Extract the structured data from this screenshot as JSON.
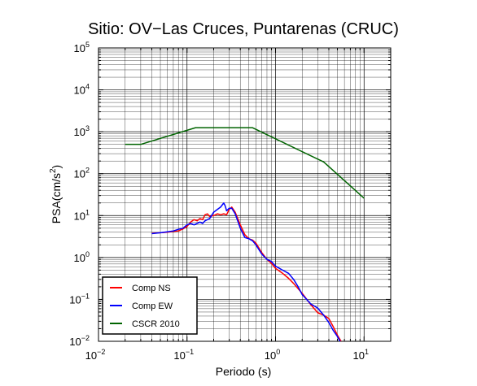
{
  "chart_data": {
    "type": "line",
    "title": "Sitio: OV−Las Cruces, Puntarenas (CRUC)",
    "xlabel": "Periodo (s)",
    "ylabel_main": "PSA(cm/s",
    "ylabel_sup": "2",
    "ylabel_close": ")",
    "x_scale": "log",
    "y_scale": "log",
    "xlim": [
      0.01,
      20
    ],
    "ylim": [
      0.01,
      100000
    ],
    "grid": true,
    "legend_position": "bottom-left",
    "x_ticks": [
      {
        "value": 0.01,
        "base": "10",
        "exp": "−2"
      },
      {
        "value": 0.1,
        "base": "10",
        "exp": "−1"
      },
      {
        "value": 1,
        "base": "10",
        "exp": "0"
      },
      {
        "value": 10,
        "base": "10",
        "exp": "1"
      }
    ],
    "y_ticks": [
      {
        "value": 0.01,
        "base": "10",
        "exp": "−2"
      },
      {
        "value": 0.1,
        "base": "10",
        "exp": "−1"
      },
      {
        "value": 1,
        "base": "10",
        "exp": "0"
      },
      {
        "value": 10,
        "base": "10",
        "exp": "1"
      },
      {
        "value": 100,
        "base": "10",
        "exp": "2"
      },
      {
        "value": 1000,
        "base": "10",
        "exp": "3"
      },
      {
        "value": 10000,
        "base": "10",
        "exp": "4"
      },
      {
        "value": 100000,
        "base": "10",
        "exp": "5"
      }
    ],
    "series": [
      {
        "name": "Comp NS",
        "color": "#ff0000",
        "x": [
          0.04,
          0.05,
          0.06,
          0.07,
          0.08,
          0.09,
          0.1,
          0.11,
          0.12,
          0.13,
          0.14,
          0.15,
          0.16,
          0.17,
          0.18,
          0.2,
          0.22,
          0.24,
          0.26,
          0.28,
          0.3,
          0.32,
          0.35,
          0.4,
          0.45,
          0.5,
          0.55,
          0.6,
          0.7,
          0.8,
          0.9,
          1.0,
          1.2,
          1.4,
          1.6,
          1.8,
          2.0,
          2.5,
          3.0,
          3.5,
          4.0,
          4.5,
          5.0,
          5.5
        ],
        "values": [
          3.8,
          3.9,
          4.0,
          4.2,
          4.3,
          4.8,
          5.5,
          7.0,
          8.0,
          7.5,
          8.5,
          8.0,
          10.5,
          11.0,
          9.5,
          10.0,
          11.0,
          10.5,
          11.0,
          10.5,
          14.0,
          16.0,
          12.0,
          6.0,
          3.5,
          2.8,
          2.6,
          2.2,
          1.3,
          0.9,
          0.72,
          0.55,
          0.42,
          0.32,
          0.24,
          0.18,
          0.14,
          0.075,
          0.048,
          0.042,
          0.035,
          0.022,
          0.014,
          0.01
        ]
      },
      {
        "name": "Comp EW",
        "color": "#0000ff",
        "x": [
          0.04,
          0.05,
          0.06,
          0.07,
          0.08,
          0.09,
          0.1,
          0.11,
          0.12,
          0.13,
          0.14,
          0.15,
          0.16,
          0.18,
          0.2,
          0.22,
          0.24,
          0.26,
          0.27,
          0.28,
          0.3,
          0.32,
          0.35,
          0.4,
          0.45,
          0.5,
          0.55,
          0.6,
          0.7,
          0.8,
          0.9,
          1.0,
          1.2,
          1.4,
          1.6,
          1.8,
          2.0,
          2.5,
          3.0,
          3.5,
          4.0,
          4.5,
          5.0,
          5.5
        ],
        "values": [
          3.7,
          3.9,
          4.1,
          4.3,
          4.7,
          5.0,
          6.0,
          6.5,
          6.0,
          6.5,
          7.0,
          6.5,
          7.5,
          8.5,
          12.0,
          14.0,
          16.0,
          20.0,
          17.0,
          13.0,
          15.0,
          15.0,
          11.0,
          5.0,
          3.0,
          2.8,
          2.5,
          2.0,
          1.2,
          0.9,
          0.8,
          0.62,
          0.5,
          0.42,
          0.3,
          0.2,
          0.13,
          0.078,
          0.062,
          0.042,
          0.028,
          0.018,
          0.013,
          0.009
        ]
      },
      {
        "name": "CSCR 2010",
        "color": "#006400",
        "x": [
          0.02,
          0.03,
          0.125,
          0.55,
          3.5,
          10
        ],
        "values": [
          500,
          500,
          1250,
          1250,
          190,
          26
        ]
      }
    ]
  }
}
